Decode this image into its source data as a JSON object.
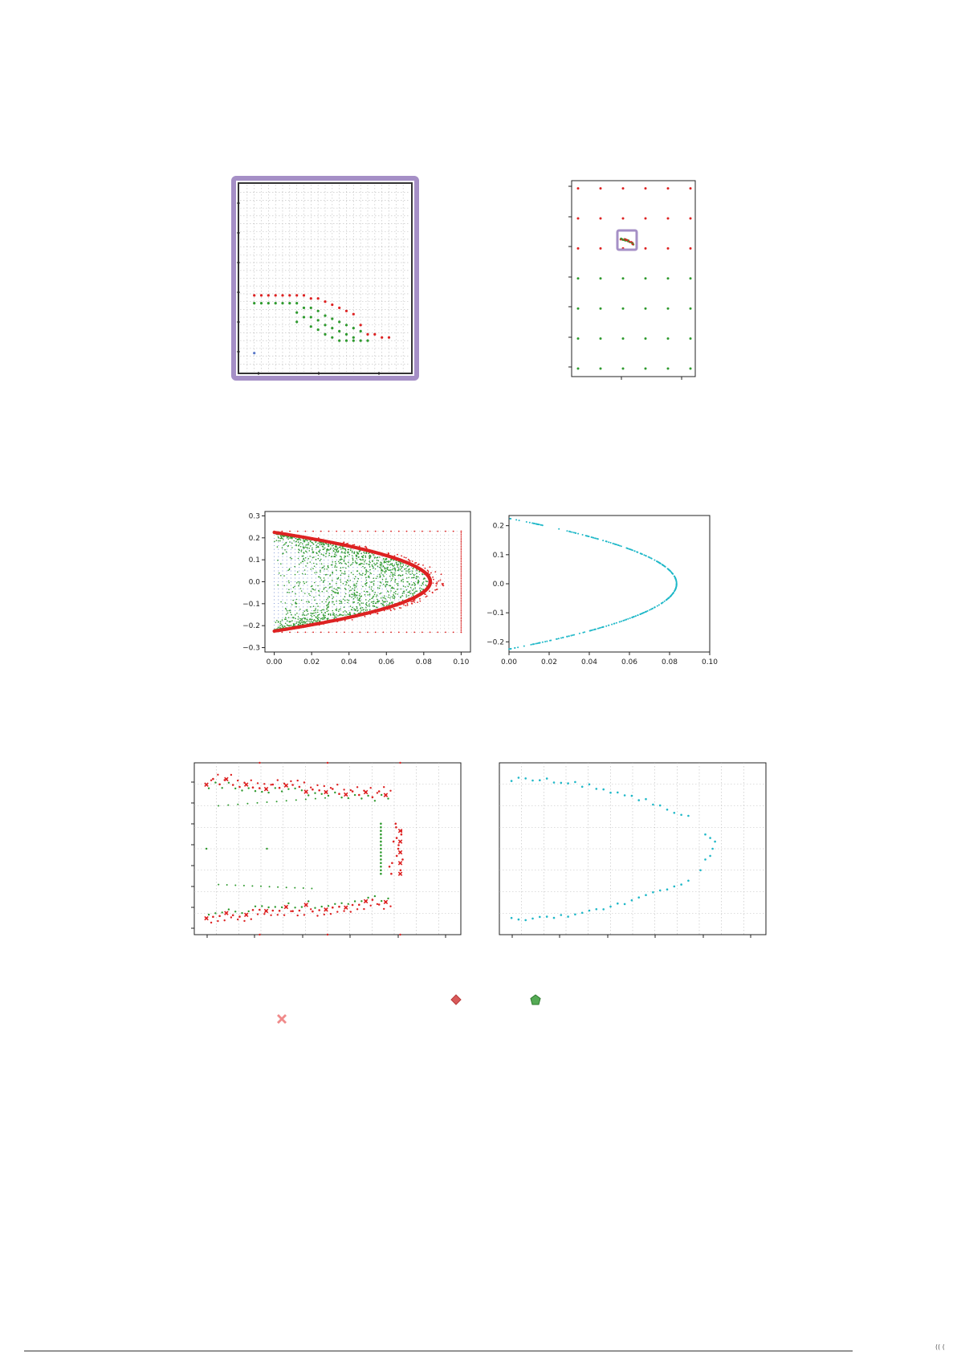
{
  "colors": {
    "red": "#dd2222",
    "green": "#2e9a2e",
    "blue": "#5a78c8",
    "cyan": "#1fb8c8",
    "grid": "#bcbcbc",
    "highlight": "#a58fc6"
  },
  "footer": {
    "page_mark": "(( ("
  },
  "legend": [
    {
      "icon": "red-diamond-icon"
    },
    {
      "icon": "green-pentagon-icon"
    },
    {
      "icon": "pink-cross-icon"
    }
  ],
  "chart_data": [
    {
      "id": "zoom-grid",
      "type": "scatter",
      "title": "",
      "xlabel": "",
      "ylabel": "",
      "xlim": [
        0,
        12
      ],
      "ylim": [
        0,
        12
      ],
      "grid": true,
      "highlighted_frame": true,
      "series": [
        {
          "color": "red",
          "marker": "dot",
          "points": [
            [
              1,
              4.9
            ],
            [
              1.5,
              4.9
            ],
            [
              2,
              4.9
            ],
            [
              2.5,
              4.9
            ],
            [
              3,
              4.9
            ],
            [
              3.5,
              4.9
            ],
            [
              4,
              4.9
            ],
            [
              4.5,
              4.9
            ],
            [
              5,
              4.7
            ],
            [
              5.5,
              4.7
            ],
            [
              6,
              4.5
            ],
            [
              6.5,
              4.3
            ],
            [
              7,
              4.1
            ],
            [
              7.5,
              3.9
            ],
            [
              8,
              3.7
            ],
            [
              8.5,
              3.0
            ],
            [
              9,
              2.4
            ],
            [
              9.5,
              2.4
            ],
            [
              10,
              2.2
            ],
            [
              10.5,
              2.2
            ]
          ]
        },
        {
          "color": "green",
          "marker": "dot",
          "points": [
            [
              1,
              4.4
            ],
            [
              1.5,
              4.4
            ],
            [
              2,
              4.4
            ],
            [
              2.5,
              4.4
            ],
            [
              3,
              4.4
            ],
            [
              3.5,
              4.4
            ],
            [
              4,
              4.4
            ],
            [
              4,
              3.8
            ],
            [
              4,
              3.2
            ],
            [
              4.5,
              4.1
            ],
            [
              4.5,
              3.5
            ],
            [
              5,
              4.1
            ],
            [
              5,
              3.5
            ],
            [
              5,
              2.9
            ],
            [
              5.5,
              3.9
            ],
            [
              5.5,
              3.3
            ],
            [
              5.5,
              2.7
            ],
            [
              6,
              3.6
            ],
            [
              6,
              3.0
            ],
            [
              6,
              2.4
            ],
            [
              6.5,
              3.4
            ],
            [
              6.5,
              2.8
            ],
            [
              6.5,
              2.2
            ],
            [
              7,
              3.2
            ],
            [
              7,
              2.6
            ],
            [
              7,
              2.0
            ],
            [
              7.5,
              3.0
            ],
            [
              7.5,
              2.4
            ],
            [
              7.5,
              2.0
            ],
            [
              8,
              2.8
            ],
            [
              8,
              2.2
            ],
            [
              8,
              2.0
            ],
            [
              8.5,
              2.6
            ],
            [
              8.5,
              2.0
            ],
            [
              9,
              2.0
            ]
          ]
        },
        {
          "color": "blue",
          "marker": "dot",
          "points": [
            [
              1,
              1.2
            ]
          ]
        }
      ]
    },
    {
      "id": "overview-grid",
      "type": "scatter",
      "title": "",
      "xlabel": "",
      "ylabel": "",
      "xlim": [
        0,
        6
      ],
      "ylim": [
        0,
        7
      ],
      "grid": false,
      "series": [
        {
          "color": "red",
          "points": [
            [
              0,
              6.8
            ],
            [
              1,
              6.8
            ],
            [
              2,
              6.8
            ],
            [
              3,
              6.8
            ],
            [
              4,
              6.8
            ],
            [
              5,
              6.8
            ],
            [
              0,
              5.8
            ],
            [
              1,
              5.8
            ],
            [
              2,
              5.8
            ],
            [
              3,
              5.8
            ],
            [
              4,
              5.8
            ],
            [
              5,
              5.8
            ],
            [
              0,
              4.8
            ],
            [
              1,
              4.8
            ],
            [
              2,
              4.8
            ],
            [
              3,
              4.8
            ],
            [
              4,
              4.8
            ],
            [
              5,
              4.8
            ]
          ]
        },
        {
          "color": "green",
          "points": [
            [
              0,
              3.8
            ],
            [
              1,
              3.8
            ],
            [
              2,
              3.8
            ],
            [
              3,
              3.8
            ],
            [
              4,
              3.8
            ],
            [
              5,
              3.8
            ],
            [
              0,
              2.8
            ],
            [
              1,
              2.8
            ],
            [
              2,
              2.8
            ],
            [
              3,
              2.8
            ],
            [
              4,
              2.8
            ],
            [
              5,
              2.8
            ],
            [
              0,
              1.8
            ],
            [
              1,
              1.8
            ],
            [
              2,
              1.8
            ],
            [
              3,
              1.8
            ],
            [
              4,
              1.8
            ],
            [
              5,
              1.8
            ],
            [
              0,
              0.8
            ],
            [
              1,
              0.8
            ],
            [
              2,
              0.8
            ],
            [
              3,
              0.8
            ],
            [
              4,
              0.8
            ],
            [
              5,
              0.8
            ]
          ]
        }
      ]
    },
    {
      "id": "dense-boundary",
      "type": "scatter",
      "title": "",
      "xlabel": "",
      "ylabel": "",
      "xlim": [
        -0.005,
        0.105
      ],
      "ylim": [
        -0.32,
        0.32
      ],
      "xticks": [
        "0.00",
        "0.02",
        "0.04",
        "0.06",
        "0.08",
        "0.10"
      ],
      "yticks": [
        "0.3",
        "0.2",
        "0.1",
        "0.0",
        "−0.1",
        "−0.2",
        "−0.3"
      ],
      "grid": true,
      "boundary": {
        "vertex_x": 0.0835,
        "half_width_y": 0.225
      },
      "series": [
        {
          "color": "blue",
          "description_points": "regular lattice of candidate points over the domain"
        },
        {
          "color": "green",
          "description_points": "sampled interior of the parabolic region"
        },
        {
          "color": "red",
          "description_points": "boundary points and outer frame"
        }
      ]
    },
    {
      "id": "boundary-only",
      "type": "scatter",
      "title": "",
      "xlabel": "",
      "ylabel": "",
      "xlim": [
        0,
        0.1
      ],
      "ylim": [
        -0.235,
        0.235
      ],
      "xticks": [
        "0.00",
        "0.02",
        "0.04",
        "0.06",
        "0.08",
        "0.10"
      ],
      "yticks": [
        "0.2",
        "0.1",
        "0.0",
        "−0.1",
        "−0.2"
      ],
      "grid": false,
      "boundary": {
        "vertex_x": 0.0835,
        "half_width_y": 0.225
      },
      "series": [
        {
          "color": "cyan"
        }
      ]
    },
    {
      "id": "sparse-boundary",
      "type": "scatter",
      "title": "",
      "xlabel": "",
      "ylabel": "",
      "xlim": [
        -0.005,
        0.105
      ],
      "ylim": [
        -0.24,
        0.24
      ],
      "grid": true,
      "boundary": {
        "vertex_x": 0.082,
        "half_width_y": 0.21
      },
      "series": [
        {
          "color": "red",
          "marker": "dot"
        },
        {
          "color": "red",
          "marker": "cross"
        },
        {
          "color": "green",
          "marker": "dot"
        }
      ]
    },
    {
      "id": "sparse-boundary-only",
      "type": "scatter",
      "title": "",
      "xlabel": "",
      "ylabel": "",
      "xlim": [
        -0.005,
        0.105
      ],
      "ylim": [
        -0.24,
        0.24
      ],
      "grid": true,
      "boundary": {
        "vertex_x": 0.0835,
        "half_width_y": 0.21
      },
      "series": [
        {
          "color": "cyan"
        }
      ]
    }
  ]
}
